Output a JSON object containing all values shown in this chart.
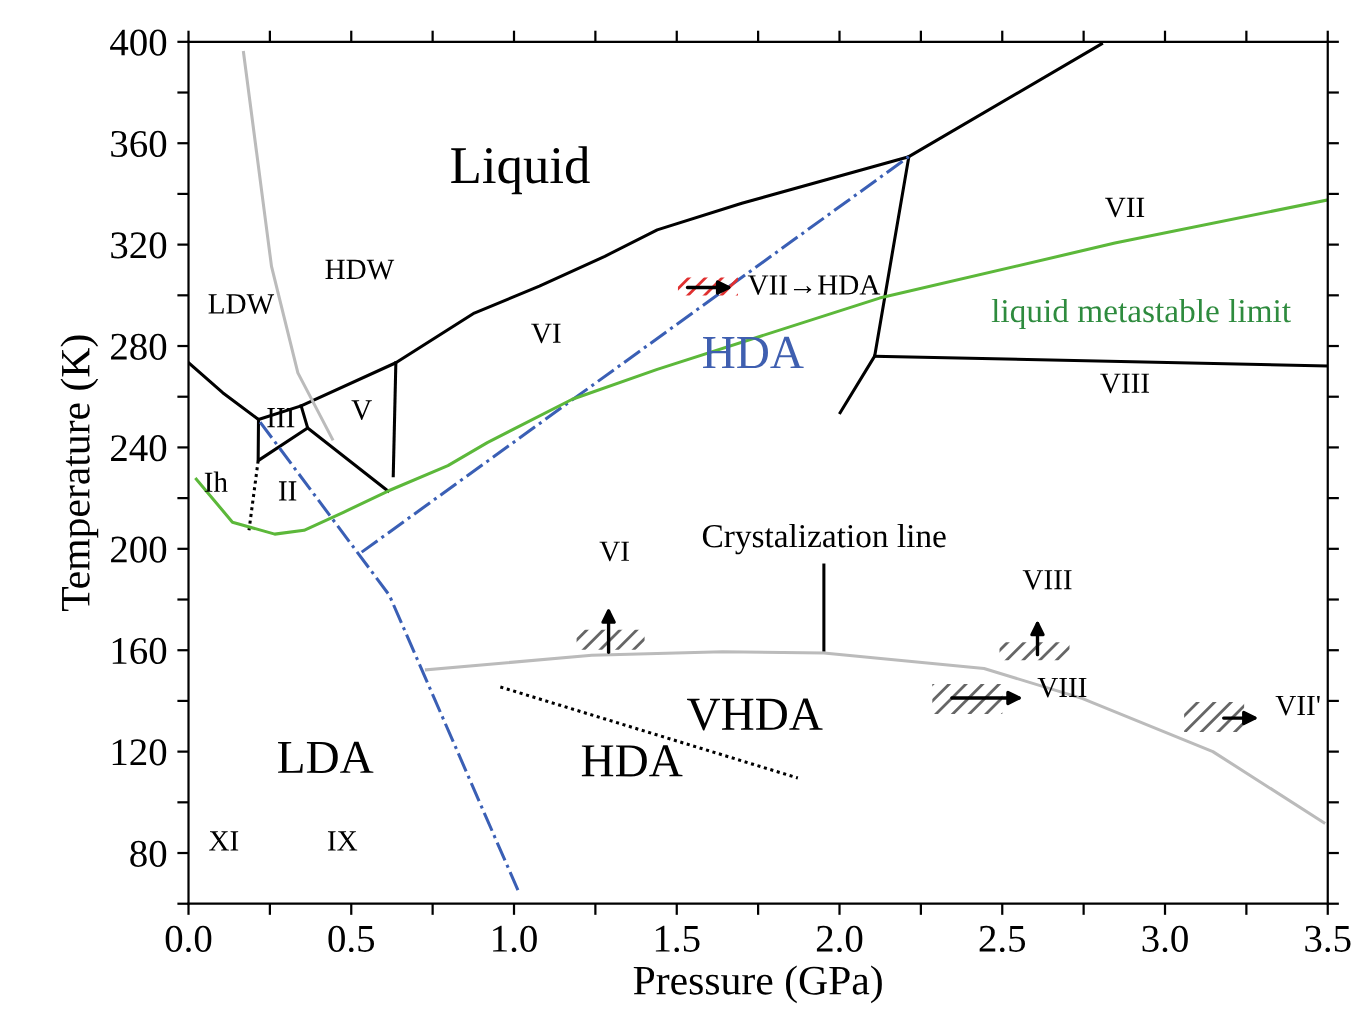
{
  "chart_data": {
    "type": "line",
    "xlabel": "Pressure (GPa)",
    "ylabel": "Temperature (K)",
    "xlim": [
      0,
      3.5
    ],
    "ylim": [
      60,
      400
    ],
    "xticks": [
      {
        "value": 0,
        "label": "0.0"
      },
      {
        "value": 0.25,
        "label": null
      },
      {
        "value": 0.5,
        "label": "0.5"
      },
      {
        "value": 0.75,
        "label": null
      },
      {
        "value": 1,
        "label": "1.0"
      },
      {
        "value": 1.25,
        "label": null
      },
      {
        "value": 1.5,
        "label": "1.5"
      },
      {
        "value": 1.75,
        "label": null
      },
      {
        "value": 2,
        "label": "2.0"
      },
      {
        "value": 2.25,
        "label": null
      },
      {
        "value": 2.5,
        "label": "2.5"
      },
      {
        "value": 2.75,
        "label": null
      },
      {
        "value": 3,
        "label": "3.0"
      },
      {
        "value": 3.25,
        "label": null
      },
      {
        "value": 3.5,
        "label": "3.5"
      }
    ],
    "yticks": [
      {
        "value": 60,
        "label": null
      },
      80,
      {
        "value": 100,
        "label": null
      },
      120,
      {
        "value": 140,
        "label": null
      },
      160,
      {
        "value": 180,
        "label": null
      },
      200,
      {
        "value": 220,
        "label": null
      },
      240,
      {
        "value": 260,
        "label": null
      },
      280,
      {
        "value": 300,
        "label": null
      },
      320,
      {
        "value": 340,
        "label": null
      },
      360,
      {
        "value": 380,
        "label": null
      },
      400
    ],
    "grid": false,
    "legend": false,
    "marker": "none",
    "series": [
      {
        "color": "#000000",
        "line_style": "solid",
        "x": [
          0,
          0.105,
          0.215,
          0.346,
          0.637,
          0.878,
          1.078,
          1.279,
          1.44,
          1.7,
          2.213,
          2.805
        ],
        "values": [
          273.4,
          261.6,
          251,
          256.4,
          273.4,
          293,
          303.6,
          315.4,
          325.8,
          336.3,
          354.7,
          399.2
        ]
      },
      {
        "color": "#000000",
        "line_style": "solid",
        "x": [
          0.215,
          0.214,
          0.366,
          0.346
        ],
        "values": [
          251,
          234.8,
          247.7,
          256.4
        ]
      },
      {
        "color": "#000000",
        "line_style": "solid",
        "x": [
          0.366,
          0.613
        ],
        "values": [
          247.7,
          222.8
        ]
      },
      {
        "color": "#000000",
        "line_style": "solid",
        "x": [
          0.637,
          0.629
        ],
        "values": [
          273.4,
          228.8
        ]
      },
      {
        "color": "#000000",
        "line_style": "solid",
        "x": [
          2.213,
          2.108,
          2.002
        ],
        "values": [
          354.7,
          276,
          253.7
        ]
      },
      {
        "color": "#000000",
        "line_style": "solid",
        "x": [
          2.108,
          3.498
        ],
        "values": [
          276,
          272.1
        ]
      },
      {
        "color": "#000000",
        "line_style": "solid",
        "x": [
          1.952,
          1.952
        ],
        "values": [
          193.6,
          160
        ]
      },
      {
        "color": "#000000",
        "line_style": "dotted",
        "x": [
          0.214,
          0.185
        ],
        "values": [
          234.8,
          206.5
        ]
      },
      {
        "color": "#000000",
        "line_style": "dotted",
        "x": [
          0.958,
          1.872
        ],
        "values": [
          145.5,
          109.6
        ]
      },
      {
        "color": "#bbbbbb",
        "line_style": "solid",
        "x": [
          0.169,
          0.255,
          0.336,
          0.442
        ],
        "values": [
          395.8,
          311.4,
          269.4,
          243.3
        ]
      },
      {
        "color": "#bbbbbb",
        "line_style": "solid",
        "x": [
          0.731,
          1.239,
          1.641,
          1.952,
          2.444,
          2.745,
          3.147,
          3.488
        ],
        "values": [
          152.3,
          158,
          159.4,
          158.9,
          152.8,
          141,
          120,
          92
        ]
      },
      {
        "color": "#3a5fb5",
        "line_style": "dashdot",
        "x": [
          0.22,
          0.617,
          1.018
        ],
        "values": [
          250,
          181.7,
          63.6
        ]
      },
      {
        "name": "HDA",
        "color": "#3a5fb5",
        "line_style": "dashdot",
        "x": [
          0.532,
          2.213
        ],
        "values": [
          198.7,
          354.7
        ]
      },
      {
        "name": "liquid metastable limit",
        "color": "#5cb83a",
        "line_style": "solid",
        "x": [
          0.024,
          0.135,
          0.265,
          0.355,
          0.476,
          0.613,
          0.797,
          0.918,
          1.179,
          1.44,
          2.123,
          2.846,
          3.498
        ],
        "values": [
          227.5,
          210.5,
          205.8,
          207.3,
          214.4,
          222.8,
          232.8,
          241.9,
          259,
          270.8,
          298.9,
          320.6,
          337.6
        ]
      }
    ],
    "annotations": [
      "Liquid",
      "LDW",
      "HDW",
      "VI",
      "V",
      "III",
      "Ih",
      "II",
      "VII",
      "VII→HDA",
      "VIII",
      "Crystalization line",
      "VI",
      "VIII",
      "VIII",
      "VII'",
      "VHDA",
      "HDA",
      "LDA",
      "XI",
      "IX"
    ]
  }
}
